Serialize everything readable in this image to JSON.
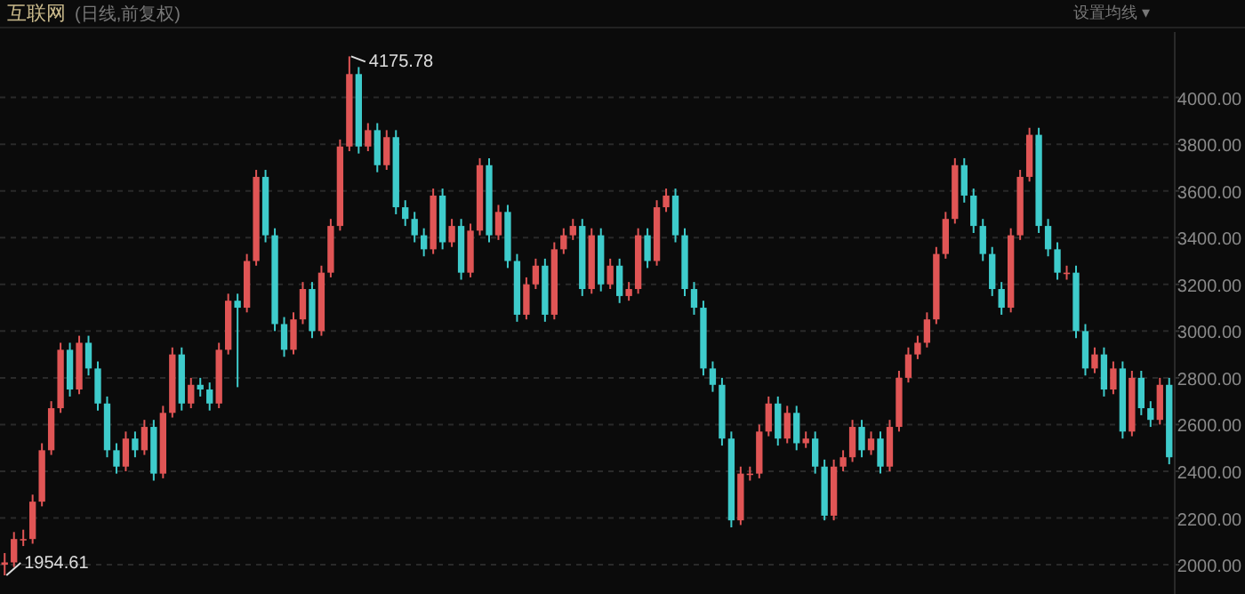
{
  "chart_data": {
    "type": "candlestick",
    "title": "互联网",
    "subtitle": "(日线,前复权)",
    "annotations": [
      "4175.78",
      "1954.61",
      "设置均线 ▾"
    ],
    "ylim": [
      1890,
      4280
    ],
    "yticks": [
      {
        "value": 2000,
        "label": "2000.00"
      },
      {
        "value": 2200,
        "label": "2200.00"
      },
      {
        "value": 2400,
        "label": "2400.00"
      },
      {
        "value": 2600,
        "label": "2600.00"
      },
      {
        "value": 2800,
        "label": "2800.00"
      },
      {
        "value": 3000,
        "label": "3000.00"
      },
      {
        "value": 3200,
        "label": "3200.00"
      },
      {
        "value": 3400,
        "label": "3400.00"
      },
      {
        "value": 3600,
        "label": "3600.00"
      },
      {
        "value": 3800,
        "label": "3800.00"
      },
      {
        "value": 4000,
        "label": "4000.00"
      }
    ],
    "grid": "y",
    "tick_labels": "y",
    "categories": [
      null,
      null,
      null,
      null,
      null,
      null,
      null,
      null,
      null,
      null,
      null,
      null,
      null,
      null,
      null,
      null,
      null,
      null,
      null,
      null,
      null,
      null,
      null,
      null,
      null,
      null,
      null,
      null,
      null,
      null,
      null,
      null,
      null,
      null,
      null,
      null,
      null,
      null,
      null,
      null,
      null,
      null,
      null,
      null,
      null,
      null,
      null,
      null,
      null,
      null,
      null,
      null,
      null,
      null,
      null,
      null,
      null,
      null,
      null,
      null,
      null,
      null,
      null,
      null,
      null,
      null,
      null,
      null,
      null,
      null,
      null,
      null,
      null,
      null,
      null,
      null,
      null,
      null,
      null,
      null,
      null,
      null,
      null,
      null,
      null,
      null,
      null,
      null,
      null,
      null,
      null,
      null,
      null,
      null,
      null,
      null,
      null,
      null,
      null,
      null,
      null,
      null,
      null,
      null,
      null,
      null,
      null,
      null,
      null,
      null,
      null,
      null,
      null,
      null,
      null,
      null,
      null,
      null,
      null,
      null,
      null,
      null,
      null,
      null,
      null,
      null
    ],
    "ohlc": [
      [
        2000,
        2050,
        1954.61,
        2010
      ],
      [
        2010,
        2140,
        1990,
        2110
      ],
      [
        2110,
        2150,
        2080,
        2110
      ],
      [
        2110,
        2300,
        2090,
        2270
      ],
      [
        2270,
        2520,
        2250,
        2490
      ],
      [
        2490,
        2700,
        2470,
        2670
      ],
      [
        2670,
        2950,
        2650,
        2920
      ],
      [
        2920,
        2950,
        2720,
        2750
      ],
      [
        2750,
        2980,
        2730,
        2950
      ],
      [
        2950,
        2980,
        2810,
        2840
      ],
      [
        2840,
        2870,
        2660,
        2690
      ],
      [
        2690,
        2720,
        2460,
        2490
      ],
      [
        2490,
        2520,
        2390,
        2420
      ],
      [
        2420,
        2570,
        2400,
        2540
      ],
      [
        2540,
        2570,
        2460,
        2490
      ],
      [
        2490,
        2620,
        2470,
        2590
      ],
      [
        2590,
        2620,
        2360,
        2390
      ],
      [
        2390,
        2680,
        2370,
        2650
      ],
      [
        2650,
        2930,
        2630,
        2900
      ],
      [
        2900,
        2930,
        2660,
        2690
      ],
      [
        2690,
        2800,
        2670,
        2770
      ],
      [
        2770,
        2800,
        2720,
        2750
      ],
      [
        2750,
        2780,
        2660,
        2690
      ],
      [
        2690,
        2950,
        2670,
        2920
      ],
      [
        2920,
        3160,
        2900,
        3130
      ],
      [
        3130,
        3160,
        2760,
        3100
      ],
      [
        3100,
        3330,
        3080,
        3300
      ],
      [
        3300,
        3690,
        3280,
        3660
      ],
      [
        3660,
        3690,
        3380,
        3410
      ],
      [
        3410,
        3440,
        3000,
        3030
      ],
      [
        3030,
        3060,
        2890,
        2920
      ],
      [
        2920,
        3080,
        2900,
        3050
      ],
      [
        3050,
        3210,
        3030,
        3180
      ],
      [
        3180,
        3210,
        2970,
        3000
      ],
      [
        3000,
        3280,
        2980,
        3250
      ],
      [
        3250,
        3480,
        3230,
        3450
      ],
      [
        3450,
        3820,
        3430,
        3790
      ],
      [
        3790,
        4175.78,
        3770,
        4100
      ],
      [
        4100,
        4130,
        3760,
        3790
      ],
      [
        3790,
        3890,
        3770,
        3860
      ],
      [
        3860,
        3890,
        3680,
        3710
      ],
      [
        3710,
        3860,
        3690,
        3830
      ],
      [
        3830,
        3860,
        3500,
        3530
      ],
      [
        3530,
        3560,
        3450,
        3480
      ],
      [
        3480,
        3510,
        3380,
        3410
      ],
      [
        3410,
        3440,
        3320,
        3350
      ],
      [
        3350,
        3610,
        3330,
        3580
      ],
      [
        3580,
        3610,
        3350,
        3380
      ],
      [
        3380,
        3480,
        3360,
        3450
      ],
      [
        3450,
        3480,
        3220,
        3250
      ],
      [
        3250,
        3460,
        3230,
        3430
      ],
      [
        3430,
        3740,
        3410,
        3710
      ],
      [
        3710,
        3740,
        3380,
        3410
      ],
      [
        3410,
        3540,
        3390,
        3510
      ],
      [
        3510,
        3540,
        3270,
        3300
      ],
      [
        3300,
        3330,
        3040,
        3070
      ],
      [
        3070,
        3230,
        3050,
        3200
      ],
      [
        3200,
        3310,
        3180,
        3280
      ],
      [
        3280,
        3310,
        3040,
        3070
      ],
      [
        3070,
        3380,
        3050,
        3350
      ],
      [
        3350,
        3440,
        3330,
        3410
      ],
      [
        3410,
        3480,
        3390,
        3450
      ],
      [
        3450,
        3480,
        3150,
        3180
      ],
      [
        3180,
        3440,
        3160,
        3410
      ],
      [
        3410,
        3440,
        3170,
        3200
      ],
      [
        3200,
        3310,
        3180,
        3280
      ],
      [
        3280,
        3310,
        3120,
        3150
      ],
      [
        3150,
        3210,
        3130,
        3180
      ],
      [
        3180,
        3440,
        3160,
        3410
      ],
      [
        3410,
        3440,
        3270,
        3300
      ],
      [
        3300,
        3560,
        3280,
        3530
      ],
      [
        3530,
        3610,
        3510,
        3580
      ],
      [
        3580,
        3610,
        3380,
        3410
      ],
      [
        3410,
        3440,
        3150,
        3180
      ],
      [
        3180,
        3210,
        3070,
        3100
      ],
      [
        3100,
        3130,
        2810,
        2840
      ],
      [
        2840,
        2870,
        2740,
        2770
      ],
      [
        2770,
        2800,
        2510,
        2540
      ],
      [
        2540,
        2570,
        2160,
        2190
      ],
      [
        2190,
        2420,
        2170,
        2390
      ],
      [
        2390,
        2420,
        2360,
        2390
      ],
      [
        2390,
        2600,
        2370,
        2570
      ],
      [
        2570,
        2720,
        2550,
        2690
      ],
      [
        2690,
        2720,
        2510,
        2540
      ],
      [
        2540,
        2680,
        2520,
        2650
      ],
      [
        2650,
        2680,
        2490,
        2520
      ],
      [
        2520,
        2570,
        2500,
        2540
      ],
      [
        2540,
        2570,
        2390,
        2420
      ],
      [
        2420,
        2450,
        2190,
        2210
      ],
      [
        2210,
        2450,
        2190,
        2420
      ],
      [
        2420,
        2490,
        2400,
        2460
      ],
      [
        2460,
        2620,
        2440,
        2590
      ],
      [
        2590,
        2620,
        2460,
        2490
      ],
      [
        2490,
        2570,
        2470,
        2540
      ],
      [
        2540,
        2570,
        2390,
        2420
      ],
      [
        2420,
        2620,
        2400,
        2590
      ],
      [
        2590,
        2830,
        2570,
        2800
      ],
      [
        2800,
        2930,
        2780,
        2900
      ],
      [
        2900,
        2980,
        2880,
        2950
      ],
      [
        2950,
        3080,
        2930,
        3050
      ],
      [
        3050,
        3360,
        3030,
        3330
      ],
      [
        3330,
        3510,
        3310,
        3480
      ],
      [
        3480,
        3740,
        3460,
        3710
      ],
      [
        3710,
        3740,
        3550,
        3580
      ],
      [
        3580,
        3610,
        3420,
        3450
      ],
      [
        3450,
        3480,
        3300,
        3330
      ],
      [
        3330,
        3360,
        3150,
        3180
      ],
      [
        3180,
        3210,
        3070,
        3100
      ],
      [
        3100,
        3440,
        3080,
        3410
      ],
      [
        3410,
        3690,
        3390,
        3660
      ],
      [
        3660,
        3870,
        3640,
        3840
      ],
      [
        3840,
        3870,
        3420,
        3450
      ],
      [
        3450,
        3480,
        3320,
        3350
      ],
      [
        3350,
        3380,
        3220,
        3250
      ],
      [
        3250,
        3280,
        3220,
        3250
      ],
      [
        3250,
        3280,
        2970,
        3000
      ],
      [
        3000,
        3030,
        2810,
        2840
      ],
      [
        2840,
        2930,
        2820,
        2900
      ],
      [
        2900,
        2930,
        2720,
        2750
      ],
      [
        2750,
        2870,
        2730,
        2840
      ],
      [
        2840,
        2870,
        2540,
        2570
      ],
      [
        2570,
        2830,
        2550,
        2800
      ],
      [
        2800,
        2830,
        2640,
        2670
      ],
      [
        2670,
        2700,
        2590,
        2620
      ],
      [
        2620,
        2800,
        2600,
        2770
      ],
      [
        2770,
        2800,
        2430,
        2460
      ]
    ]
  }
}
